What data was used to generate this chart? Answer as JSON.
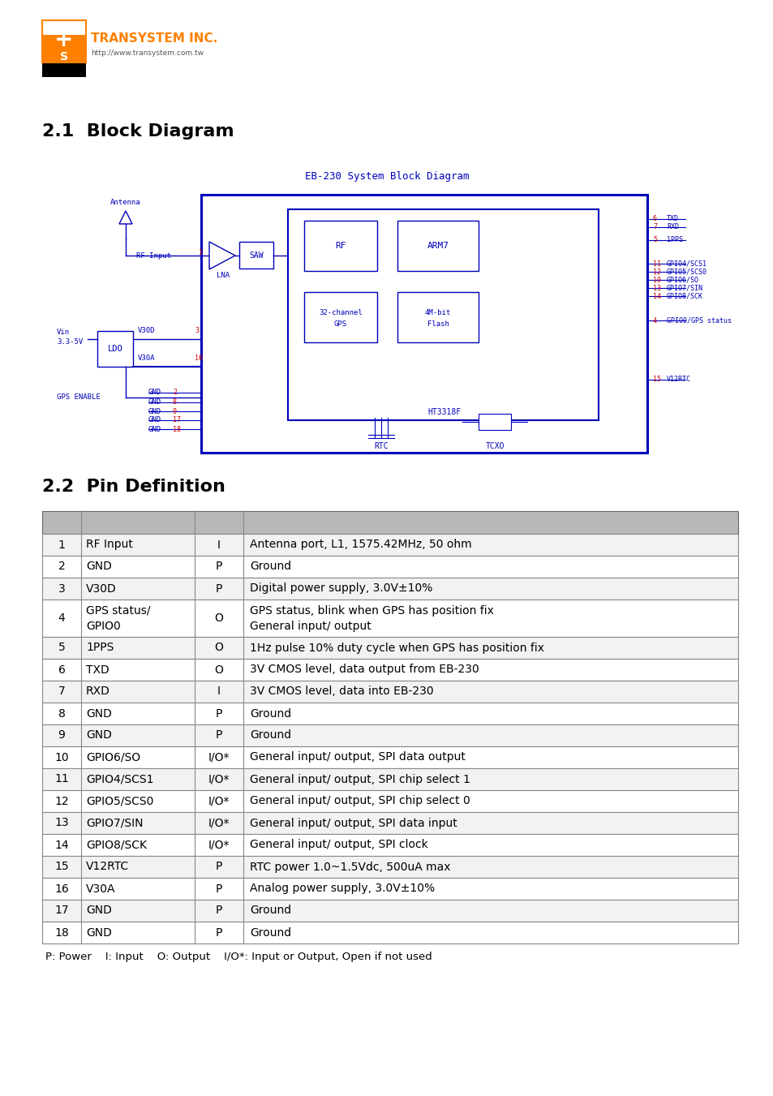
{
  "page_bg": "#ffffff",
  "section1_title": "2.1  Block Diagram",
  "block_diagram_title": "EB-230 System Block Diagram",
  "section2_title": "2.2  Pin Definition",
  "table_header_bg": "#b8b8b8",
  "table_row_bg": "#ffffff",
  "table_border": "#000000",
  "pin_rows": [
    [
      "1",
      "RF Input",
      "I",
      "Antenna port, L1, 1575.42MHz, 50 ohm",
      false
    ],
    [
      "2",
      "GND",
      "P",
      "Ground",
      false
    ],
    [
      "3",
      "V30D",
      "P",
      "Digital power supply, 3.0V±10%",
      false
    ],
    [
      "4",
      "GPS status/\nGPIO0",
      "O",
      "GPS status, blink when GPS has position fix\nGeneral input/ output",
      true
    ],
    [
      "5",
      "1PPS",
      "O",
      "1Hz pulse 10% duty cycle when GPS has position fix",
      false
    ],
    [
      "6",
      "TXD",
      "O",
      "3V CMOS level, data output from EB-230",
      false
    ],
    [
      "7",
      "RXD",
      "I",
      "3V CMOS level, data into EB-230",
      false
    ],
    [
      "8",
      "GND",
      "P",
      "Ground",
      false
    ],
    [
      "9",
      "GND",
      "P",
      "Ground",
      false
    ],
    [
      "10",
      "GPIO6/SO",
      "I/O*",
      "General input/ output, SPI data output",
      false
    ],
    [
      "11",
      "GPIO4/SCS1",
      "I/O*",
      "General input/ output, SPI chip select 1",
      false
    ],
    [
      "12",
      "GPIO5/SCS0",
      "I/O*",
      "General input/ output, SPI chip select 0",
      false
    ],
    [
      "13",
      "GPIO7/SIN",
      "I/O*",
      "General input/ output, SPI data input",
      false
    ],
    [
      "14",
      "GPIO8/SCK",
      "I/O*",
      "General input/ output, SPI clock",
      false
    ],
    [
      "15",
      "V12RTC",
      "P",
      "RTC power 1.0~1.5Vdc, 500uA max",
      false
    ],
    [
      "16",
      "V30A",
      "P",
      "Analog power supply, 3.0V±10%",
      false
    ],
    [
      "17",
      "GND",
      "P",
      "Ground",
      false
    ],
    [
      "18",
      "GND",
      "P",
      "Ground",
      false
    ]
  ],
  "table_footer": "P: Power    I: Input    O: Output    I/O*: Input or Output, Open if not used",
  "blue": "#0000bb",
  "red": "#cc0000",
  "orange": "#ff8000"
}
